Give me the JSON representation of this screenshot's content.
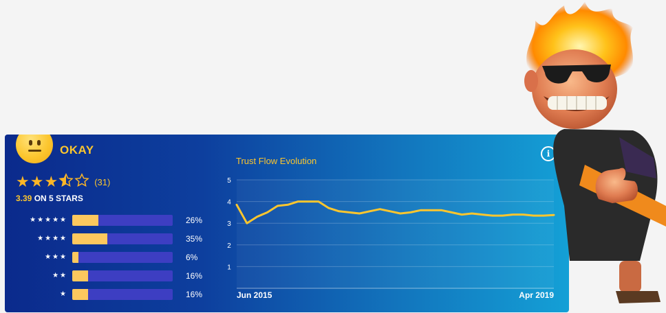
{
  "rating": {
    "label": "OKAY",
    "review_count": "(31)",
    "score": "3.39",
    "score_suffix": "ON 5 STARS",
    "stars": {
      "value": 3.5,
      "max": 5
    },
    "distribution": [
      {
        "stars_label": "★★★★★",
        "percent_label": "26%",
        "fraction": 0.26
      },
      {
        "stars_label": "★★★★",
        "percent_label": "35%",
        "fraction": 0.35
      },
      {
        "stars_label": "★★★",
        "percent_label": "6%",
        "fraction": 0.06
      },
      {
        "stars_label": "★★",
        "percent_label": "16%",
        "fraction": 0.16
      },
      {
        "stars_label": "★",
        "percent_label": "16%",
        "fraction": 0.16
      }
    ]
  },
  "colors": {
    "accent": "#fcc62e",
    "bar_track": "#3d3ec2",
    "bar_fill": "#fcc85e"
  },
  "chart_data": {
    "type": "line",
    "title": "Trust Flow Evolution",
    "x_start_label": "Jun 2015",
    "x_end_label": "Apr 2019",
    "ylim": [
      0,
      5
    ],
    "y_ticks": [
      "1",
      "2",
      "3",
      "4",
      "5"
    ],
    "grid": true,
    "series": [
      {
        "values": [
          3.85,
          3.0,
          3.3,
          3.5,
          3.8,
          3.85,
          4.0,
          4.0,
          4.0,
          3.7,
          3.55,
          3.5,
          3.45,
          3.55,
          3.65,
          3.55,
          3.45,
          3.5,
          3.6,
          3.6,
          3.6,
          3.5,
          3.4,
          3.45,
          3.4,
          3.35,
          3.35,
          3.4,
          3.4,
          3.35,
          3.35,
          3.38
        ]
      }
    ]
  },
  "icons": {
    "info": "info-icon",
    "face": "neutral-face-icon"
  }
}
